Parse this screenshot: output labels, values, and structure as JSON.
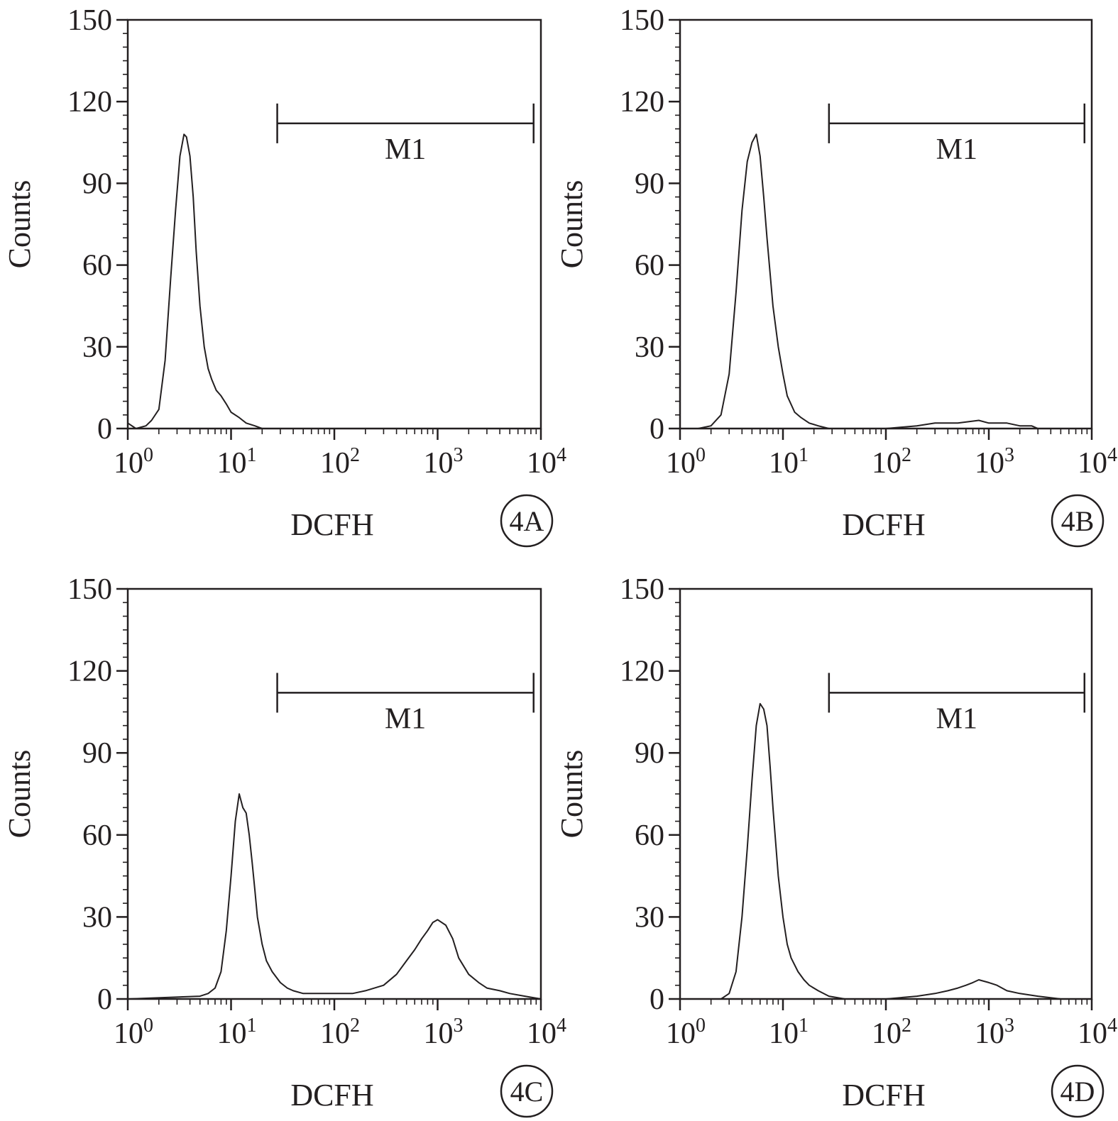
{
  "colors": {
    "ink": "#231f20",
    "background": "#ffffff"
  },
  "chart_data": [
    {
      "panel": "4A",
      "type": "line",
      "xlabel": "DCFH",
      "ylabel": "Counts",
      "x_scale": "log",
      "xlim": [
        1,
        10000
      ],
      "ylim": [
        0,
        150
      ],
      "yticks": [
        0,
        30,
        60,
        90,
        120,
        150
      ],
      "xtick_labels": [
        {
          "base": "10",
          "exp": "0"
        },
        {
          "base": "10",
          "exp": "1"
        },
        {
          "base": "10",
          "exp": "2"
        },
        {
          "base": "10",
          "exp": "3"
        },
        {
          "base": "10",
          "exp": "4"
        }
      ],
      "marker": {
        "label": "M1",
        "x_start": 28,
        "x_end": 8500,
        "y": 112
      },
      "grid": false,
      "series": [
        {
          "x": [
            1,
            1.2,
            1.5,
            1.7,
            2.0,
            2.3,
            2.6,
            2.9,
            3.2,
            3.5,
            3.7,
            4.0,
            4.3,
            4.6,
            5.0,
            5.5,
            6.0,
            6.5,
            7.2,
            8.0,
            9.0,
            10,
            12,
            14,
            17,
            20,
            25,
            40,
            100,
            1000,
            10000
          ],
          "y": [
            2,
            0,
            1,
            3,
            7,
            25,
            55,
            80,
            100,
            108,
            107,
            100,
            85,
            65,
            45,
            30,
            22,
            18,
            14,
            12,
            9,
            6,
            4,
            2,
            1,
            0,
            0,
            0,
            0,
            0,
            0
          ]
        }
      ]
    },
    {
      "panel": "4B",
      "type": "line",
      "xlabel": "DCFH",
      "ylabel": "Counts",
      "x_scale": "log",
      "xlim": [
        1,
        10000
      ],
      "ylim": [
        0,
        150
      ],
      "yticks": [
        0,
        30,
        60,
        90,
        120,
        150
      ],
      "xtick_labels": [
        {
          "base": "10",
          "exp": "0"
        },
        {
          "base": "10",
          "exp": "1"
        },
        {
          "base": "10",
          "exp": "2"
        },
        {
          "base": "10",
          "exp": "3"
        },
        {
          "base": "10",
          "exp": "4"
        }
      ],
      "marker": {
        "label": "M1",
        "x_start": 28,
        "x_end": 8500,
        "y": 112
      },
      "grid": false,
      "series": [
        {
          "x": [
            1,
            1.5,
            2.0,
            2.5,
            3.0,
            3.5,
            4.0,
            4.5,
            5.0,
            5.5,
            6.0,
            6.5,
            7.0,
            8.0,
            9.0,
            10,
            11,
            13,
            15,
            18,
            22,
            28,
            50,
            100,
            200,
            300,
            500,
            800,
            1000,
            1500,
            2000,
            2600,
            3000,
            5000,
            10000
          ],
          "y": [
            0,
            0,
            1,
            5,
            20,
            50,
            80,
            98,
            105,
            108,
            100,
            85,
            70,
            45,
            30,
            20,
            12,
            6,
            4,
            2,
            1,
            0,
            0,
            0,
            1,
            2,
            2,
            3,
            2,
            2,
            1,
            1,
            0,
            0,
            0
          ]
        }
      ]
    },
    {
      "panel": "4C",
      "type": "line",
      "xlabel": "DCFH",
      "ylabel": "Counts",
      "x_scale": "log",
      "xlim": [
        1,
        10000
      ],
      "ylim": [
        0,
        150
      ],
      "yticks": [
        0,
        30,
        60,
        90,
        120,
        150
      ],
      "xtick_labels": [
        {
          "base": "10",
          "exp": "0"
        },
        {
          "base": "10",
          "exp": "1"
        },
        {
          "base": "10",
          "exp": "2"
        },
        {
          "base": "10",
          "exp": "3"
        },
        {
          "base": "10",
          "exp": "4"
        }
      ],
      "marker": {
        "label": "M1",
        "x_start": 28,
        "x_end": 8500,
        "y": 112
      },
      "grid": false,
      "series": [
        {
          "x": [
            1,
            5,
            6,
            7,
            8,
            9,
            10,
            11,
            12,
            13,
            14,
            15,
            16,
            17,
            18,
            20,
            22,
            25,
            30,
            35,
            40,
            50,
            60,
            80,
            100,
            150,
            200,
            300,
            400,
            500,
            600,
            700,
            800,
            900,
            1000,
            1200,
            1400,
            1600,
            2000,
            2500,
            3000,
            4000,
            5000,
            7000,
            10000
          ],
          "y": [
            0,
            1,
            2,
            4,
            10,
            25,
            45,
            65,
            75,
            70,
            68,
            60,
            50,
            40,
            30,
            20,
            14,
            10,
            6,
            4,
            3,
            2,
            2,
            2,
            2,
            2,
            3,
            5,
            9,
            14,
            18,
            22,
            25,
            28,
            29,
            27,
            22,
            15,
            9,
            6,
            4,
            3,
            2,
            1,
            0
          ]
        }
      ]
    },
    {
      "panel": "4D",
      "type": "line",
      "xlabel": "DCFH",
      "ylabel": "Counts",
      "x_scale": "log",
      "xlim": [
        1,
        10000
      ],
      "ylim": [
        0,
        150
      ],
      "yticks": [
        0,
        30,
        60,
        90,
        120,
        150
      ],
      "xtick_labels": [
        {
          "base": "10",
          "exp": "0"
        },
        {
          "base": "10",
          "exp": "1"
        },
        {
          "base": "10",
          "exp": "2"
        },
        {
          "base": "10",
          "exp": "3"
        },
        {
          "base": "10",
          "exp": "4"
        }
      ],
      "marker": {
        "label": "M1",
        "x_start": 28,
        "x_end": 8500,
        "y": 112
      },
      "grid": false,
      "series": [
        {
          "x": [
            1,
            2.5,
            3.0,
            3.5,
            4.0,
            4.5,
            5.0,
            5.5,
            6.0,
            6.5,
            7.0,
            7.5,
            8.0,
            9.0,
            10,
            11,
            12,
            14,
            16,
            18,
            22,
            28,
            40,
            60,
            100,
            200,
            300,
            400,
            500,
            600,
            700,
            800,
            1000,
            1200,
            1500,
            2000,
            3000,
            5000,
            10000
          ],
          "y": [
            0,
            0,
            2,
            10,
            30,
            55,
            80,
            100,
            108,
            106,
            100,
            85,
            70,
            45,
            30,
            20,
            15,
            10,
            7,
            5,
            3,
            1,
            0,
            0,
            0,
            1,
            2,
            3,
            4,
            5,
            6,
            7,
            6,
            5,
            3,
            2,
            1,
            0,
            0
          ]
        }
      ]
    }
  ]
}
